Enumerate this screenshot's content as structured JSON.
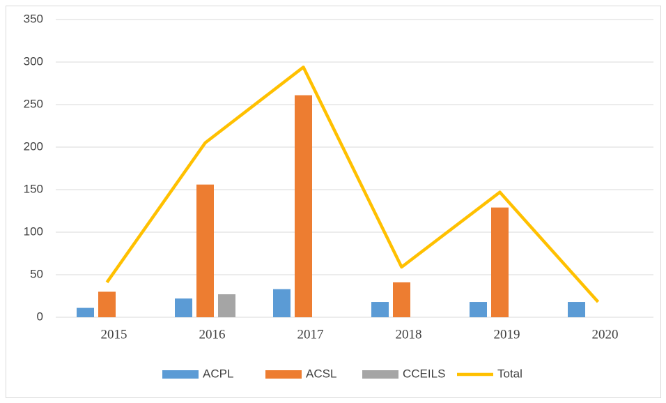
{
  "chart_data": {
    "type": "bar",
    "categories": [
      "2015",
      "2016",
      "2017",
      "2018",
      "2019",
      "2020"
    ],
    "series": [
      {
        "name": "ACPL",
        "color": "#5b9bd5",
        "values": [
          11,
          22,
          33,
          18,
          18,
          18
        ]
      },
      {
        "name": "ACSL",
        "color": "#ed7d31",
        "values": [
          30,
          156,
          261,
          41,
          129,
          0
        ]
      },
      {
        "name": "CCEILS",
        "color": "#a5a5a5",
        "values": [
          0,
          27,
          0,
          0,
          0,
          0
        ]
      },
      {
        "name": "Total",
        "type": "line",
        "color": "#ffc000",
        "values": [
          41,
          205,
          294,
          59,
          147,
          18
        ]
      }
    ],
    "ylim": [
      0,
      350
    ],
    "yticks": [
      0,
      50,
      100,
      150,
      200,
      250,
      300,
      350
    ],
    "grid": true,
    "legend": "bottom"
  }
}
